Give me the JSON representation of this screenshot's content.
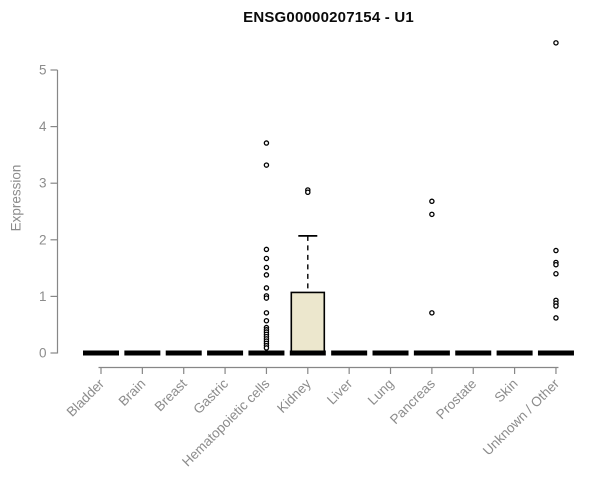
{
  "chart_data": {
    "type": "boxplot",
    "title": "ENSG00000207154 - U1",
    "ylabel": "Expression",
    "xlabel": "",
    "ylim": [
      0,
      5
    ],
    "yticks": [
      0,
      1,
      2,
      3,
      4,
      5
    ],
    "grid": false,
    "legend": "none",
    "axis_color": "#878787",
    "tick_label_color": "#8c8c8c",
    "box_fill_color": "#ece7cd",
    "box_line_color": "#000000",
    "categories": [
      "Bladder",
      "Brain",
      "Breast",
      "Gastric",
      "Hematopoietic cells",
      "Kidney",
      "Liver",
      "Lung",
      "Pancreas",
      "Prostate",
      "Skin",
      "Unknown / Other"
    ],
    "boxes": [
      {
        "category": "Bladder",
        "min": 0,
        "q1": 0,
        "median": 0,
        "q3": 0,
        "max": 0,
        "outliers": []
      },
      {
        "category": "Brain",
        "min": 0,
        "q1": 0,
        "median": 0,
        "q3": 0,
        "max": 0,
        "outliers": []
      },
      {
        "category": "Breast",
        "min": 0,
        "q1": 0,
        "median": 0,
        "q3": 0,
        "max": 0,
        "outliers": []
      },
      {
        "category": "Gastric",
        "min": 0,
        "q1": 0,
        "median": 0,
        "q3": 0,
        "max": 0,
        "outliers": []
      },
      {
        "category": "Hematopoietic cells",
        "min": 0,
        "q1": 0,
        "median": 0,
        "q3": 0,
        "max": 0,
        "outliers": [
          3.71,
          3.32,
          1.83,
          1.67,
          1.51,
          1.38,
          1.15,
          1.01,
          0.97,
          0.71,
          0.57,
          0.45,
          0.41,
          0.37,
          0.33,
          0.29,
          0.25,
          0.21,
          0.17,
          0.13,
          0.09
        ]
      },
      {
        "category": "Kidney",
        "min": 0,
        "q1": 0,
        "median": 0,
        "q3": 1.07,
        "max": 2.07,
        "outliers": [
          2.88,
          2.84
        ]
      },
      {
        "category": "Liver",
        "min": 0,
        "q1": 0,
        "median": 0,
        "q3": 0,
        "max": 0,
        "outliers": []
      },
      {
        "category": "Lung",
        "min": 0,
        "q1": 0,
        "median": 0,
        "q3": 0,
        "max": 0,
        "outliers": []
      },
      {
        "category": "Pancreas",
        "min": 0,
        "q1": 0,
        "median": 0,
        "q3": 0,
        "max": 0,
        "outliers": [
          2.68,
          2.45,
          0.71
        ]
      },
      {
        "category": "Prostate",
        "min": 0,
        "q1": 0,
        "median": 0,
        "q3": 0,
        "max": 0,
        "outliers": []
      },
      {
        "category": "Skin",
        "min": 0,
        "q1": 0,
        "median": 0,
        "q3": 0,
        "max": 0,
        "outliers": []
      },
      {
        "category": "Unknown / Other",
        "min": 0,
        "q1": 0,
        "median": 0,
        "q3": 0,
        "max": 0,
        "outliers": [
          5.48,
          1.81,
          1.6,
          1.56,
          1.4,
          0.93,
          0.88,
          0.83,
          0.62
        ]
      }
    ]
  }
}
